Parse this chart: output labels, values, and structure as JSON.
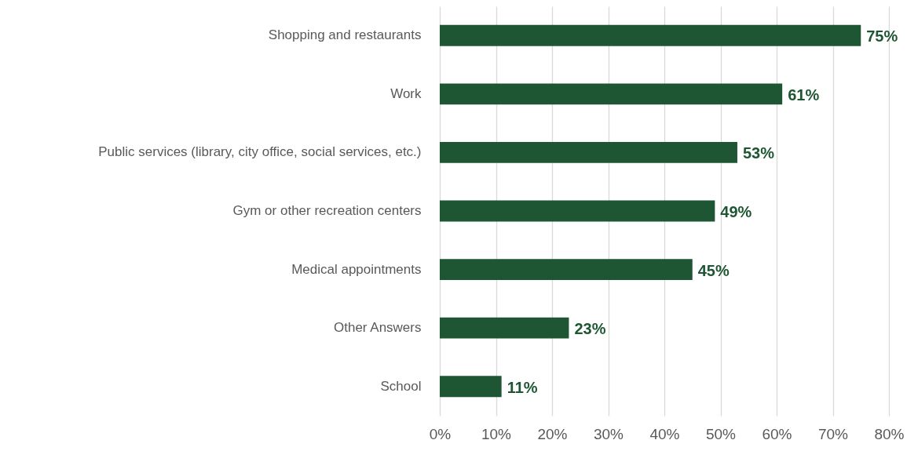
{
  "chart_data": {
    "type": "bar",
    "orientation": "horizontal",
    "categories": [
      "Shopping and restaurants",
      "Work",
      "Public services (library, city office, social services, etc.)",
      "Gym or other recreation centers",
      "Medical appointments",
      "Other Answers",
      "School"
    ],
    "values": [
      75,
      61,
      53,
      49,
      45,
      23,
      11
    ],
    "value_labels": [
      "75%",
      "61%",
      "53%",
      "49%",
      "45%",
      "23%",
      "11%"
    ],
    "color": "#1e5633",
    "xlim": [
      0,
      80
    ],
    "xticks": [
      {
        "value": 0,
        "label": "0%"
      },
      {
        "value": 10,
        "label": "10%"
      },
      {
        "value": 20,
        "label": "20%"
      },
      {
        "value": 30,
        "label": "30%"
      },
      {
        "value": 40,
        "label": "40%"
      },
      {
        "value": 50,
        "label": "50%"
      },
      {
        "value": 60,
        "label": "60%"
      },
      {
        "value": 70,
        "label": "70%"
      },
      {
        "value": 80,
        "label": "80%"
      }
    ],
    "grid": "x"
  }
}
